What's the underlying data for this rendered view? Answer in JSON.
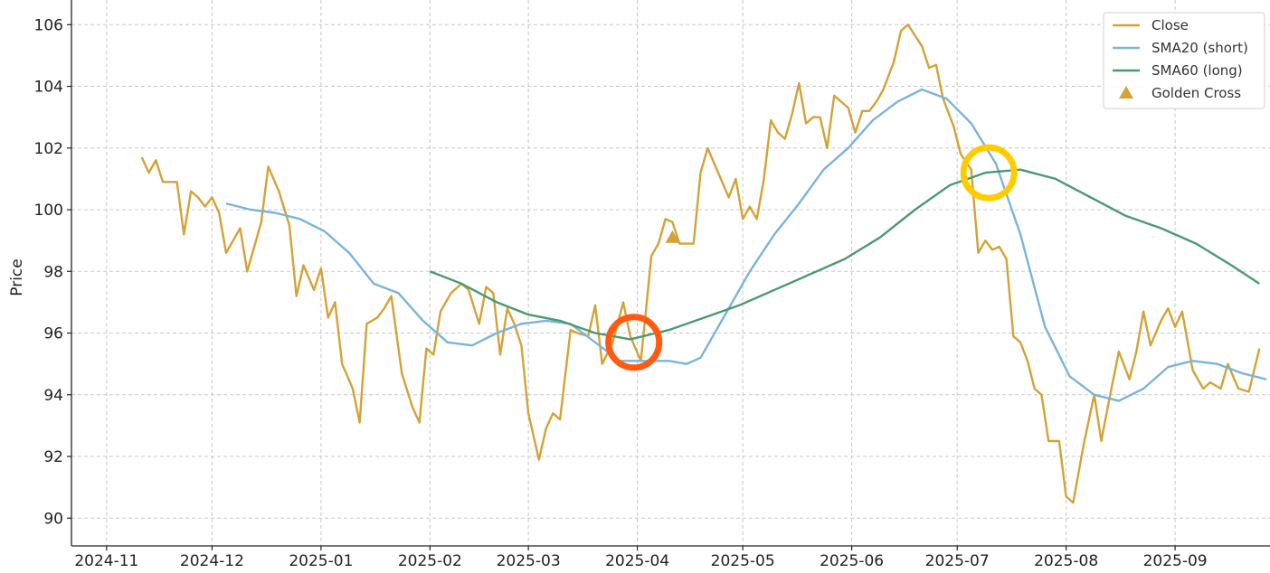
{
  "chart_data": {
    "type": "line",
    "title": "",
    "xlabel": "",
    "ylabel": "Price",
    "x_tick_labels": [
      "2024-11",
      "2024-12",
      "2025-01",
      "2025-02",
      "2025-03",
      "2025-04",
      "2025-05",
      "2025-06",
      "2025-07",
      "2025-08",
      "2025-09"
    ],
    "x_tick_dates": [
      "2024-11-01",
      "2024-12-01",
      "2025-01-01",
      "2025-02-01",
      "2025-03-01",
      "2025-04-01",
      "2025-05-01",
      "2025-06-01",
      "2025-07-01",
      "2025-08-01",
      "2025-09-01"
    ],
    "xlim": [
      "2024-10-22",
      "2025-09-28"
    ],
    "ylim": [
      89.1,
      106.8
    ],
    "y_ticks": [
      90,
      92,
      94,
      96,
      98,
      100,
      102,
      104,
      106
    ],
    "grid": true,
    "legend_position": "top-right",
    "series": [
      {
        "name": "Close",
        "color": "#d4a237",
        "points": [
          [
            "2024-11-11",
            101.7
          ],
          [
            "2024-11-13",
            101.2
          ],
          [
            "2024-11-15",
            101.6
          ],
          [
            "2024-11-17",
            100.9
          ],
          [
            "2024-11-21",
            100.9
          ],
          [
            "2024-11-23",
            99.2
          ],
          [
            "2024-11-25",
            100.6
          ],
          [
            "2024-11-27",
            100.4
          ],
          [
            "2024-11-29",
            100.1
          ],
          [
            "2024-12-01",
            100.4
          ],
          [
            "2024-12-03",
            99.9
          ],
          [
            "2024-12-05",
            98.6
          ],
          [
            "2024-12-07",
            99.0
          ],
          [
            "2024-12-09",
            99.4
          ],
          [
            "2024-12-11",
            98.0
          ],
          [
            "2024-12-13",
            98.8
          ],
          [
            "2024-12-15",
            99.6
          ],
          [
            "2024-12-17",
            101.4
          ],
          [
            "2024-12-20",
            100.6
          ],
          [
            "2024-12-23",
            99.5
          ],
          [
            "2024-12-25",
            97.2
          ],
          [
            "2024-12-27",
            98.2
          ],
          [
            "2024-12-30",
            97.4
          ],
          [
            "2025-01-01",
            98.1
          ],
          [
            "2025-01-03",
            96.5
          ],
          [
            "2025-01-05",
            97.0
          ],
          [
            "2025-01-07",
            95.0
          ],
          [
            "2025-01-10",
            94.2
          ],
          [
            "2025-01-12",
            93.1
          ],
          [
            "2025-01-14",
            96.3
          ],
          [
            "2025-01-17",
            96.5
          ],
          [
            "2025-01-19",
            96.8
          ],
          [
            "2025-01-21",
            97.2
          ],
          [
            "2025-01-24",
            94.7
          ],
          [
            "2025-01-27",
            93.6
          ],
          [
            "2025-01-29",
            93.1
          ],
          [
            "2025-01-31",
            95.5
          ],
          [
            "2025-02-02",
            95.3
          ],
          [
            "2025-02-04",
            96.7
          ],
          [
            "2025-02-07",
            97.3
          ],
          [
            "2025-02-10",
            97.6
          ],
          [
            "2025-02-12",
            97.4
          ],
          [
            "2025-02-15",
            96.3
          ],
          [
            "2025-02-17",
            97.5
          ],
          [
            "2025-02-19",
            97.3
          ],
          [
            "2025-02-21",
            95.3
          ],
          [
            "2025-02-23",
            96.8
          ],
          [
            "2025-02-25",
            96.3
          ],
          [
            "2025-02-27",
            95.6
          ],
          [
            "2025-03-01",
            93.4
          ],
          [
            "2025-03-04",
            91.9
          ],
          [
            "2025-03-06",
            92.9
          ],
          [
            "2025-03-08",
            93.4
          ],
          [
            "2025-03-10",
            93.2
          ],
          [
            "2025-03-13",
            96.1
          ],
          [
            "2025-03-15",
            96.0
          ],
          [
            "2025-03-18",
            95.9
          ],
          [
            "2025-03-20",
            96.9
          ],
          [
            "2025-03-22",
            95.0
          ],
          [
            "2025-03-25",
            95.7
          ],
          [
            "2025-03-28",
            97.0
          ],
          [
            "2025-03-30",
            95.9
          ],
          [
            "2025-04-02",
            95.1
          ],
          [
            "2025-04-05",
            98.5
          ],
          [
            "2025-04-07",
            98.9
          ],
          [
            "2025-04-09",
            99.7
          ],
          [
            "2025-04-11",
            99.6
          ],
          [
            "2025-04-13",
            98.9
          ],
          [
            "2025-04-17",
            98.9
          ],
          [
            "2025-04-19",
            101.2
          ],
          [
            "2025-04-21",
            102.0
          ],
          [
            "2025-04-24",
            101.2
          ],
          [
            "2025-04-27",
            100.4
          ],
          [
            "2025-04-29",
            101.0
          ],
          [
            "2025-05-01",
            99.7
          ],
          [
            "2025-05-03",
            100.1
          ],
          [
            "2025-05-05",
            99.7
          ],
          [
            "2025-05-07",
            101.0
          ],
          [
            "2025-05-09",
            102.9
          ],
          [
            "2025-05-11",
            102.5
          ],
          [
            "2025-05-13",
            102.3
          ],
          [
            "2025-05-15",
            103.1
          ],
          [
            "2025-05-17",
            104.1
          ],
          [
            "2025-05-19",
            102.8
          ],
          [
            "2025-05-21",
            103.0
          ],
          [
            "2025-05-23",
            103.0
          ],
          [
            "2025-05-25",
            102.0
          ],
          [
            "2025-05-27",
            103.7
          ],
          [
            "2025-05-29",
            103.5
          ],
          [
            "2025-05-31",
            103.3
          ],
          [
            "2025-06-02",
            102.5
          ],
          [
            "2025-06-04",
            103.2
          ],
          [
            "2025-06-06",
            103.2
          ],
          [
            "2025-06-08",
            103.5
          ],
          [
            "2025-06-10",
            103.9
          ],
          [
            "2025-06-13",
            104.8
          ],
          [
            "2025-06-15",
            105.8
          ],
          [
            "2025-06-17",
            106.0
          ],
          [
            "2025-06-21",
            105.3
          ],
          [
            "2025-06-23",
            104.6
          ],
          [
            "2025-06-25",
            104.7
          ],
          [
            "2025-06-27",
            103.6
          ],
          [
            "2025-06-30",
            102.7
          ],
          [
            "2025-07-02",
            101.8
          ],
          [
            "2025-07-05",
            101.3
          ],
          [
            "2025-07-07",
            98.6
          ],
          [
            "2025-07-09",
            99.0
          ],
          [
            "2025-07-11",
            98.7
          ],
          [
            "2025-07-13",
            98.8
          ],
          [
            "2025-07-15",
            98.4
          ],
          [
            "2025-07-17",
            95.9
          ],
          [
            "2025-07-19",
            95.7
          ],
          [
            "2025-07-21",
            95.1
          ],
          [
            "2025-07-23",
            94.2
          ],
          [
            "2025-07-25",
            94.0
          ],
          [
            "2025-07-27",
            92.5
          ],
          [
            "2025-07-30",
            92.5
          ],
          [
            "2025-08-01",
            90.7
          ],
          [
            "2025-08-03",
            90.5
          ],
          [
            "2025-08-06",
            92.4
          ],
          [
            "2025-08-09",
            94.0
          ],
          [
            "2025-08-11",
            92.5
          ],
          [
            "2025-08-13",
            93.7
          ],
          [
            "2025-08-16",
            95.4
          ],
          [
            "2025-08-19",
            94.5
          ],
          [
            "2025-08-21",
            95.4
          ],
          [
            "2025-08-23",
            96.7
          ],
          [
            "2025-08-25",
            95.6
          ],
          [
            "2025-08-28",
            96.4
          ],
          [
            "2025-08-30",
            96.8
          ],
          [
            "2025-09-01",
            96.2
          ],
          [
            "2025-09-03",
            96.7
          ],
          [
            "2025-09-06",
            94.8
          ],
          [
            "2025-09-09",
            94.2
          ],
          [
            "2025-09-11",
            94.4
          ],
          [
            "2025-09-14",
            94.2
          ],
          [
            "2025-09-16",
            95.0
          ],
          [
            "2025-09-19",
            94.2
          ],
          [
            "2025-09-22",
            94.1
          ],
          [
            "2025-09-25",
            95.5
          ]
        ]
      },
      {
        "name": "SMA20 (short)",
        "color": "#7ab4dc",
        "points": [
          [
            "2024-12-05",
            100.2
          ],
          [
            "2024-12-12",
            100.0
          ],
          [
            "2024-12-19",
            99.9
          ],
          [
            "2024-12-26",
            99.7
          ],
          [
            "2025-01-02",
            99.3
          ],
          [
            "2025-01-09",
            98.6
          ],
          [
            "2025-01-16",
            97.6
          ],
          [
            "2025-01-23",
            97.3
          ],
          [
            "2025-01-30",
            96.4
          ],
          [
            "2025-02-06",
            95.7
          ],
          [
            "2025-02-13",
            95.6
          ],
          [
            "2025-02-20",
            96.0
          ],
          [
            "2025-02-27",
            96.3
          ],
          [
            "2025-03-06",
            96.4
          ],
          [
            "2025-03-13",
            96.3
          ],
          [
            "2025-03-20",
            95.7
          ],
          [
            "2025-03-27",
            95.1
          ],
          [
            "2025-04-03",
            95.1
          ],
          [
            "2025-04-10",
            95.1
          ],
          [
            "2025-04-15",
            95.0
          ],
          [
            "2025-04-19",
            95.2
          ],
          [
            "2025-04-26",
            96.6
          ],
          [
            "2025-05-03",
            98.0
          ],
          [
            "2025-05-10",
            99.2
          ],
          [
            "2025-05-17",
            100.2
          ],
          [
            "2025-05-24",
            101.3
          ],
          [
            "2025-05-31",
            102.0
          ],
          [
            "2025-06-07",
            102.9
          ],
          [
            "2025-06-14",
            103.5
          ],
          [
            "2025-06-21",
            103.9
          ],
          [
            "2025-06-28",
            103.6
          ],
          [
            "2025-07-05",
            102.8
          ],
          [
            "2025-07-12",
            101.5
          ],
          [
            "2025-07-19",
            99.2
          ],
          [
            "2025-07-26",
            96.2
          ],
          [
            "2025-08-02",
            94.6
          ],
          [
            "2025-08-09",
            94.0
          ],
          [
            "2025-08-16",
            93.8
          ],
          [
            "2025-08-23",
            94.2
          ],
          [
            "2025-08-30",
            94.9
          ],
          [
            "2025-09-06",
            95.1
          ],
          [
            "2025-09-13",
            95.0
          ],
          [
            "2025-09-20",
            94.7
          ],
          [
            "2025-09-27",
            94.5
          ]
        ]
      },
      {
        "name": "SMA60 (long)",
        "color": "#4a9a70",
        "points": [
          [
            "2025-02-01",
            98.0
          ],
          [
            "2025-02-10",
            97.6
          ],
          [
            "2025-02-20",
            97.0
          ],
          [
            "2025-03-01",
            96.6
          ],
          [
            "2025-03-10",
            96.4
          ],
          [
            "2025-03-20",
            96.0
          ],
          [
            "2025-03-30",
            95.8
          ],
          [
            "2025-04-10",
            96.1
          ],
          [
            "2025-04-20",
            96.5
          ],
          [
            "2025-04-30",
            96.9
          ],
          [
            "2025-05-10",
            97.4
          ],
          [
            "2025-05-20",
            97.9
          ],
          [
            "2025-05-30",
            98.4
          ],
          [
            "2025-06-09",
            99.1
          ],
          [
            "2025-06-19",
            100.0
          ],
          [
            "2025-06-29",
            100.8
          ],
          [
            "2025-07-09",
            101.2
          ],
          [
            "2025-07-19",
            101.3
          ],
          [
            "2025-07-29",
            101.0
          ],
          [
            "2025-08-08",
            100.4
          ],
          [
            "2025-08-18",
            99.8
          ],
          [
            "2025-08-28",
            99.4
          ],
          [
            "2025-09-07",
            98.9
          ],
          [
            "2025-09-17",
            98.2
          ],
          [
            "2025-09-25",
            97.6
          ]
        ]
      }
    ],
    "markers": [
      {
        "name": "Golden Cross",
        "date": "2025-04-11",
        "value": 99.1,
        "color": "#d4a237",
        "shape": "triangle"
      }
    ],
    "annotations": [
      {
        "shape": "circle",
        "date": "2025-03-31",
        "value": 95.7,
        "color": "#ff5a10"
      },
      {
        "shape": "circle",
        "date": "2025-07-10",
        "value": 101.2,
        "color": "#ffcc00"
      }
    ]
  }
}
